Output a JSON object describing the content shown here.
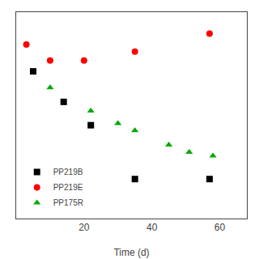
{
  "chart_data": {
    "type": "scatter",
    "xlabel": "Time (d)",
    "xlim": [
      0,
      68
    ],
    "ylim": [
      0.0,
      1.15
    ],
    "xticks": [
      20,
      40,
      60
    ],
    "tick_labels": "x",
    "grid": false,
    "legend": "lower left",
    "series": [
      {
        "name": "PP219B",
        "color": "#000000",
        "marker": "square",
        "x": [
          5,
          14,
          22,
          35,
          57
        ],
        "values": [
          0.82,
          0.65,
          0.52,
          0.22,
          0.22
        ]
      },
      {
        "name": "PP219E",
        "color": "#ff0000",
        "marker": "circle",
        "x": [
          3,
          10,
          20,
          35,
          57
        ],
        "values": [
          0.97,
          0.88,
          0.88,
          0.93,
          1.03
        ]
      },
      {
        "name": "PP175R",
        "color": "#00aa00",
        "marker": "triangle-up",
        "x": [
          10,
          22,
          30,
          35,
          45,
          51,
          58
        ],
        "values": [
          0.73,
          0.6,
          0.53,
          0.49,
          0.41,
          0.37,
          0.35
        ]
      }
    ]
  }
}
